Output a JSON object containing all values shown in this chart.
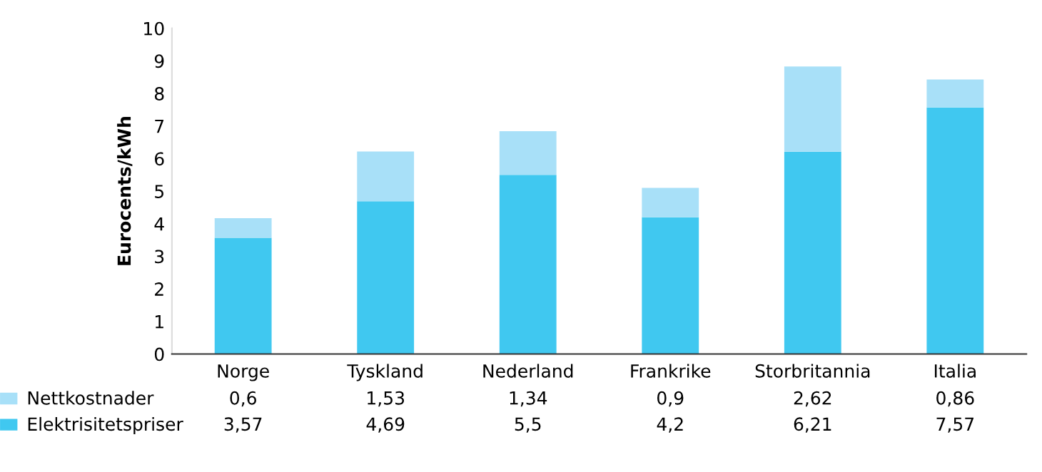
{
  "chart_data": {
    "type": "bar",
    "stacked": true,
    "ylabel": "Eurocents/kWh",
    "categories": [
      "Norge",
      "Tyskland",
      "Nederland",
      "Frankrike",
      "Storbritannia",
      "Italia"
    ],
    "series": [
      {
        "name": "Elektrisitetspriser",
        "color": "#40c8f0",
        "values": [
          3.57,
          4.69,
          5.5,
          4.2,
          6.21,
          7.57
        ],
        "value_labels": [
          "3,57",
          "4,69",
          "5,5",
          "4,2",
          "6,21",
          "7,57"
        ]
      },
      {
        "name": "Nettkostnader",
        "color": "#a8e0f8",
        "values": [
          0.6,
          1.53,
          1.34,
          0.9,
          2.62,
          0.86
        ],
        "value_labels": [
          "0,6",
          "1,53",
          "1,34",
          "0,9",
          "2,62",
          "0,86"
        ]
      }
    ],
    "ylim": [
      0,
      10
    ],
    "yticks": [
      0,
      1,
      2,
      3,
      4,
      5,
      6,
      7,
      8,
      9,
      10
    ],
    "grid": false,
    "legend": "bottom left"
  }
}
